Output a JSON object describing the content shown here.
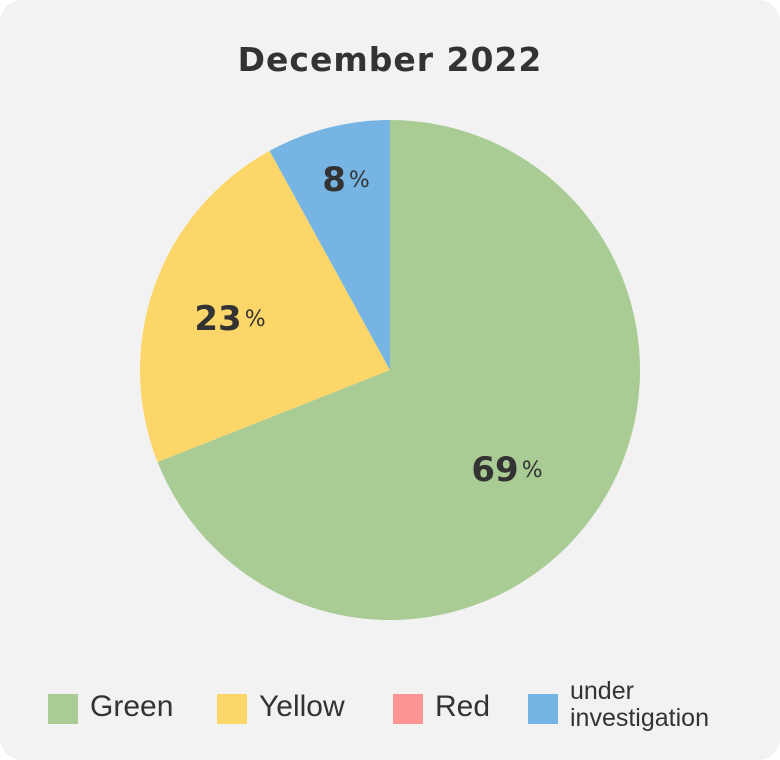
{
  "chart_data": {
    "type": "pie",
    "title": "December 2022",
    "slices": [
      {
        "label": "Green",
        "value": 69,
        "color": "#a9cb94"
      },
      {
        "label": "Yellow",
        "value": 23,
        "color": "#fcd668"
      },
      {
        "label": "Red",
        "value": 0,
        "color": "#fc9494"
      },
      {
        "label": "under investigation",
        "value": 8,
        "color": "#76b5e3"
      }
    ],
    "data_labels": [
      "69",
      "23",
      "",
      "8"
    ],
    "unit_suffix": "%",
    "start_angle_deg": 0,
    "direction": "clockwise",
    "legend_position": "bottom"
  },
  "legend": [
    {
      "label": "Green",
      "color": "#a9cb94"
    },
    {
      "label": "Yellow",
      "color": "#fcd668"
    },
    {
      "label": "Red",
      "color": "#fc9494"
    },
    {
      "label": "under investigation",
      "color": "#76b5e3"
    }
  ]
}
